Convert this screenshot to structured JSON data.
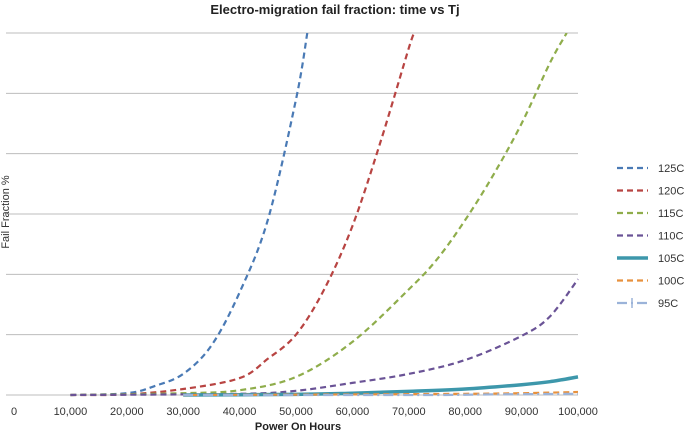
{
  "chart_data": {
    "type": "line",
    "title": "Electro-migration fail fraction: time vs Tj",
    "xlabel": "Power On Hours",
    "ylabel": "Fail Fraction %",
    "xlim": [
      0,
      100000
    ],
    "ylim": [
      0,
      6
    ],
    "x_ticks": [
      0,
      10000,
      20000,
      30000,
      40000,
      50000,
      60000,
      70000,
      80000,
      90000,
      100000
    ],
    "x_tick_labels": [
      "0",
      "10,000",
      "20,000",
      "30,000",
      "40,000",
      "50,000",
      "60,000",
      "70,000",
      "80,000",
      "90,000",
      "100,000"
    ],
    "y_grid": [
      0,
      1,
      2,
      3,
      4,
      5,
      6
    ],
    "grid": true,
    "legend_position": "right",
    "series": [
      {
        "name": "125C",
        "color": "#4a7ab5",
        "style": "dashed",
        "x": [
          10000,
          20000,
          25000,
          30000,
          35000,
          40000,
          45000,
          50000,
          52000
        ],
        "y": [
          0.0,
          0.03,
          0.15,
          0.35,
          0.82,
          1.7,
          2.9,
          4.9,
          6.0
        ]
      },
      {
        "name": "120C",
        "color": "#b84442",
        "style": "dashed",
        "x": [
          10000,
          20000,
          30000,
          40000,
          45000,
          50000,
          55000,
          60000,
          65000,
          70000,
          71000
        ],
        "y": [
          0.0,
          0.01,
          0.1,
          0.28,
          0.6,
          1.0,
          1.75,
          2.8,
          4.2,
          5.75,
          6.0
        ]
      },
      {
        "name": "115C",
        "color": "#8fad4b",
        "style": "dashed",
        "x": [
          10000,
          30000,
          40000,
          50000,
          60000,
          70000,
          75000,
          80000,
          85000,
          90000,
          95000,
          98000
        ],
        "y": [
          0.0,
          0.03,
          0.08,
          0.3,
          0.88,
          1.75,
          2.25,
          2.9,
          3.65,
          4.5,
          5.5,
          6.0
        ]
      },
      {
        "name": "110C",
        "color": "#6a5396",
        "style": "dashed",
        "x": [
          10000,
          40000,
          50000,
          60000,
          70000,
          80000,
          90000,
          95000,
          100000
        ],
        "y": [
          0.0,
          0.02,
          0.07,
          0.2,
          0.35,
          0.58,
          0.98,
          1.3,
          1.92
        ]
      },
      {
        "name": "105C",
        "color": "#3d97ab",
        "style": "solid",
        "x": [
          30000,
          50000,
          60000,
          70000,
          80000,
          90000,
          95000,
          100000
        ],
        "y": [
          0.0,
          0.01,
          0.03,
          0.06,
          0.1,
          0.17,
          0.22,
          0.3
        ]
      },
      {
        "name": "100C",
        "color": "#e8913d",
        "style": "dashed",
        "x": [
          30000,
          60000,
          80000,
          90000,
          100000
        ],
        "y": [
          0.0,
          0.01,
          0.02,
          0.03,
          0.05
        ]
      },
      {
        "name": "95C",
        "color": "#9bb3d9",
        "style": "dashdot",
        "x": [
          30000,
          60000,
          75000,
          85000,
          100000
        ],
        "y": [
          0.0,
          0.0,
          0.0,
          0.01,
          0.02
        ]
      }
    ]
  }
}
